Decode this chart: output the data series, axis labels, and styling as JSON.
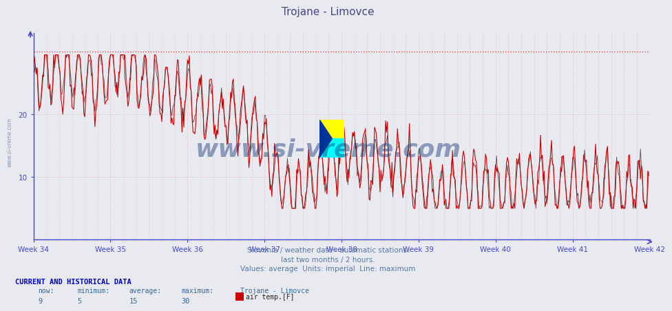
{
  "title": "Trojane - Limovce",
  "xlabel_ticks": [
    "Week 34",
    "Week 35",
    "Week 36",
    "Week 37",
    "Week 38",
    "Week 39",
    "Week 40",
    "Week 41",
    "Week 42"
  ],
  "ylabel_ticks": [
    "10",
    "20"
  ],
  "ylabel_vals": [
    10,
    20
  ],
  "ylim": [
    0,
    33
  ],
  "xlim": [
    0,
    672
  ],
  "subtitle_lines": [
    "Slovenia / weather data - automatic stations.",
    "last two months / 2 hours.",
    "Values: average  Units: imperial  Line: maximum"
  ],
  "footer_label": "CURRENT AND HISTORICAL DATA",
  "footer_cols": [
    "now:",
    "minimum:",
    "average:",
    "maximum:",
    "Trojane - Limovce"
  ],
  "footer_vals": [
    "9",
    "5",
    "15",
    "30"
  ],
  "legend_label": "air temp.[F]",
  "legend_color": "#cc0000",
  "line_color": "#cc0000",
  "dark_line_color": "#330000",
  "bg_color": "#e8eaf0",
  "plot_bg_color": "#e8eaf0",
  "grid_color": "#ddaaaa",
  "dotted_line_color": "#dd4444",
  "axis_color": "#4444cc",
  "watermark_text": "www.si-vreme.com",
  "watermark_color": "#1a3a7a",
  "watermark_alpha": 0.45,
  "sidebar_text": "www.si-vreme.com",
  "sidebar_color": "#8899bb",
  "dotted_max_value": 30,
  "title_color": "#444488",
  "subtitle_color": "#5577aa",
  "footer_header_color": "#0000cc",
  "footer_val_color": "#336699"
}
